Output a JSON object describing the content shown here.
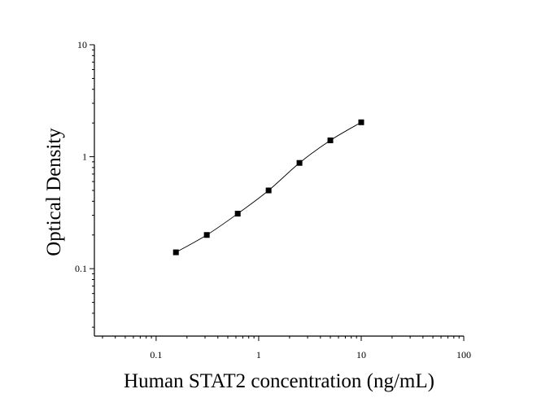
{
  "chart_data": {
    "type": "scatter",
    "xlabel": "Human STAT2 concentration (ng/mL)",
    "ylabel": "Optical Density",
    "xscale": "log",
    "yscale": "log",
    "xlim": [
      0.025,
      100
    ],
    "ylim": [
      0.025,
      10
    ],
    "x_ticks": [
      {
        "value": 0.1,
        "label": "0.1"
      },
      {
        "value": 1,
        "label": "1"
      },
      {
        "value": 10,
        "label": "10"
      },
      {
        "value": 100,
        "label": "100"
      }
    ],
    "y_ticks": [
      {
        "value": 0.1,
        "label": "0.1"
      },
      {
        "value": 1,
        "label": "1"
      },
      {
        "value": 10,
        "label": "10"
      }
    ],
    "series": [
      {
        "x": [
          0.156,
          0.312,
          0.625,
          1.25,
          2.5,
          5,
          10
        ],
        "y": [
          0.14,
          0.2,
          0.31,
          0.5,
          0.88,
          1.4,
          2.03
        ],
        "marker": "square",
        "color": "#000000",
        "fit": "smooth-curve"
      }
    ],
    "grid": false,
    "legend": "none"
  }
}
